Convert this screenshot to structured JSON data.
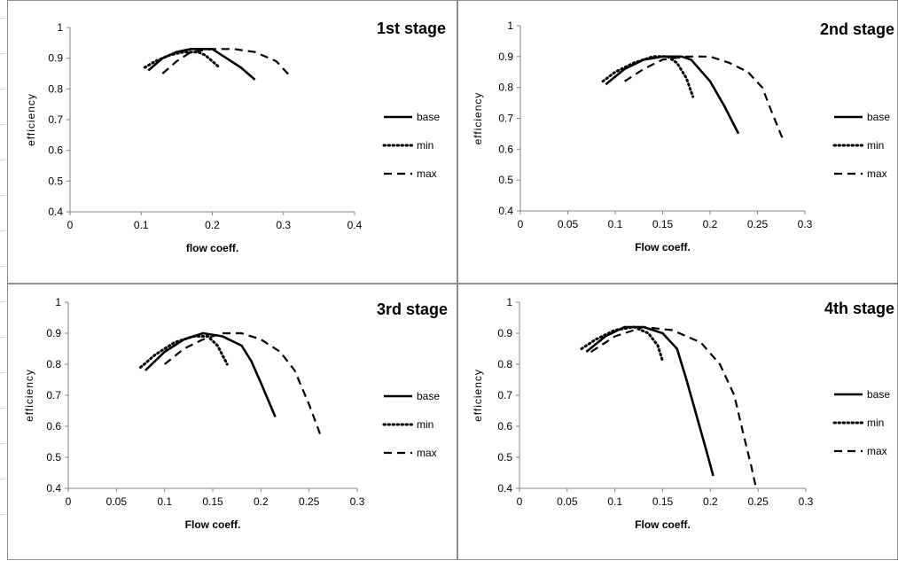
{
  "chart_data": [
    {
      "type": "line",
      "title": "1st stage",
      "xlabel": "flow coeff.",
      "ylabel": "efficiency",
      "xlim": [
        0,
        0.4
      ],
      "ylim": [
        0.4,
        1
      ],
      "x_ticks": [
        "0",
        "0.1",
        "0.2",
        "0.3",
        "0.4"
      ],
      "y_ticks": [
        "0.4",
        "0.5",
        "0.6",
        "0.7",
        "0.8",
        "0.9",
        "1"
      ],
      "legend": "right",
      "series": [
        {
          "name": "base",
          "style": "solid",
          "points": [
            [
              0.11,
              0.86
            ],
            [
              0.13,
              0.9
            ],
            [
              0.15,
              0.92
            ],
            [
              0.17,
              0.93
            ],
            [
              0.2,
              0.93
            ],
            [
              0.22,
              0.9
            ],
            [
              0.24,
              0.87
            ],
            [
              0.26,
              0.83
            ]
          ]
        },
        {
          "name": "min",
          "style": "dotted",
          "points": [
            [
              0.105,
              0.87
            ],
            [
              0.12,
              0.89
            ],
            [
              0.14,
              0.91
            ],
            [
              0.16,
              0.92
            ],
            [
              0.18,
              0.92
            ],
            [
              0.19,
              0.91
            ],
            [
              0.2,
              0.89
            ],
            [
              0.21,
              0.87
            ]
          ]
        },
        {
          "name": "max",
          "style": "dashed",
          "points": [
            [
              0.13,
              0.85
            ],
            [
              0.15,
              0.89
            ],
            [
              0.17,
              0.92
            ],
            [
              0.2,
              0.93
            ],
            [
              0.23,
              0.93
            ],
            [
              0.26,
              0.92
            ],
            [
              0.29,
              0.89
            ],
            [
              0.31,
              0.84
            ]
          ]
        }
      ]
    },
    {
      "type": "line",
      "title": "2nd stage",
      "xlabel": "Flow coeff.",
      "ylabel": "efficiency",
      "xlim": [
        0,
        0.3
      ],
      "ylim": [
        0.4,
        1
      ],
      "x_ticks": [
        "0",
        "0.05",
        "0.1",
        "0.15",
        "0.2",
        "0.25",
        "0.3"
      ],
      "y_ticks": [
        "0.4",
        "0.5",
        "0.6",
        "0.7",
        "0.8",
        "0.9",
        "1"
      ],
      "legend": "right",
      "series": [
        {
          "name": "base",
          "style": "solid",
          "points": [
            [
              0.09,
              0.81
            ],
            [
              0.11,
              0.86
            ],
            [
              0.13,
              0.89
            ],
            [
              0.15,
              0.9
            ],
            [
              0.17,
              0.9
            ],
            [
              0.18,
              0.89
            ],
            [
              0.2,
              0.82
            ],
            [
              0.215,
              0.74
            ],
            [
              0.23,
              0.65
            ]
          ]
        },
        {
          "name": "min",
          "style": "dotted",
          "points": [
            [
              0.087,
              0.82
            ],
            [
              0.1,
              0.85
            ],
            [
              0.12,
              0.88
            ],
            [
              0.14,
              0.9
            ],
            [
              0.155,
              0.9
            ],
            [
              0.165,
              0.88
            ],
            [
              0.175,
              0.83
            ],
            [
              0.182,
              0.77
            ]
          ]
        },
        {
          "name": "max",
          "style": "dashed",
          "points": [
            [
              0.11,
              0.82
            ],
            [
              0.13,
              0.86
            ],
            [
              0.15,
              0.89
            ],
            [
              0.175,
              0.9
            ],
            [
              0.2,
              0.9
            ],
            [
              0.22,
              0.88
            ],
            [
              0.24,
              0.85
            ],
            [
              0.255,
              0.8
            ],
            [
              0.265,
              0.72
            ],
            [
              0.277,
              0.63
            ]
          ]
        }
      ]
    },
    {
      "type": "line",
      "title": "3rd stage",
      "xlabel": "Flow coeff.",
      "ylabel": "efficiency",
      "xlim": [
        0,
        0.3
      ],
      "ylim": [
        0.4,
        1
      ],
      "x_ticks": [
        "0",
        "0.05",
        "0.1",
        "0.15",
        "0.2",
        "0.25",
        "0.3"
      ],
      "y_ticks": [
        "0.4",
        "0.5",
        "0.6",
        "0.7",
        "0.8",
        "0.9",
        "1"
      ],
      "legend": "right",
      "series": [
        {
          "name": "base",
          "style": "solid",
          "points": [
            [
              0.08,
              0.78
            ],
            [
              0.1,
              0.84
            ],
            [
              0.12,
              0.88
            ],
            [
              0.14,
              0.9
            ],
            [
              0.16,
              0.89
            ],
            [
              0.18,
              0.86
            ],
            [
              0.19,
              0.81
            ],
            [
              0.2,
              0.74
            ],
            [
              0.215,
              0.63
            ]
          ]
        },
        {
          "name": "min",
          "style": "dotted",
          "points": [
            [
              0.075,
              0.79
            ],
            [
              0.09,
              0.83
            ],
            [
              0.11,
              0.87
            ],
            [
              0.13,
              0.89
            ],
            [
              0.145,
              0.89
            ],
            [
              0.155,
              0.86
            ],
            [
              0.165,
              0.8
            ]
          ]
        },
        {
          "name": "max",
          "style": "dashed",
          "points": [
            [
              0.1,
              0.8
            ],
            [
              0.12,
              0.85
            ],
            [
              0.14,
              0.88
            ],
            [
              0.16,
              0.9
            ],
            [
              0.18,
              0.9
            ],
            [
              0.2,
              0.88
            ],
            [
              0.22,
              0.84
            ],
            [
              0.235,
              0.78
            ],
            [
              0.25,
              0.67
            ],
            [
              0.262,
              0.57
            ]
          ]
        }
      ]
    },
    {
      "type": "line",
      "title": "4th stage",
      "xlabel": "Flow coeff.",
      "ylabel": "efficiency",
      "xlim": [
        0,
        0.3
      ],
      "ylim": [
        0.4,
        1
      ],
      "x_ticks": [
        "0",
        "0.05",
        "0.1",
        "0.15",
        "0.2",
        "0.25",
        "0.3"
      ],
      "y_ticks": [
        "0.4",
        "0.5",
        "0.6",
        "0.7",
        "0.8",
        "0.9",
        "1"
      ],
      "legend": "right",
      "series": [
        {
          "name": "base",
          "style": "solid",
          "points": [
            [
              0.07,
              0.84
            ],
            [
              0.09,
              0.89
            ],
            [
              0.11,
              0.92
            ],
            [
              0.13,
              0.92
            ],
            [
              0.15,
              0.9
            ],
            [
              0.165,
              0.85
            ],
            [
              0.175,
              0.75
            ],
            [
              0.185,
              0.64
            ],
            [
              0.195,
              0.53
            ],
            [
              0.203,
              0.44
            ]
          ]
        },
        {
          "name": "min",
          "style": "dotted",
          "points": [
            [
              0.065,
              0.85
            ],
            [
              0.08,
              0.88
            ],
            [
              0.1,
              0.91
            ],
            [
              0.12,
              0.92
            ],
            [
              0.135,
              0.9
            ],
            [
              0.145,
              0.86
            ],
            [
              0.15,
              0.81
            ]
          ]
        },
        {
          "name": "max",
          "style": "dashed",
          "points": [
            [
              0.075,
              0.84
            ],
            [
              0.1,
              0.89
            ],
            [
              0.13,
              0.92
            ],
            [
              0.16,
              0.91
            ],
            [
              0.19,
              0.87
            ],
            [
              0.21,
              0.8
            ],
            [
              0.225,
              0.7
            ],
            [
              0.235,
              0.57
            ],
            [
              0.243,
              0.47
            ],
            [
              0.248,
              0.4
            ]
          ]
        }
      ]
    }
  ]
}
